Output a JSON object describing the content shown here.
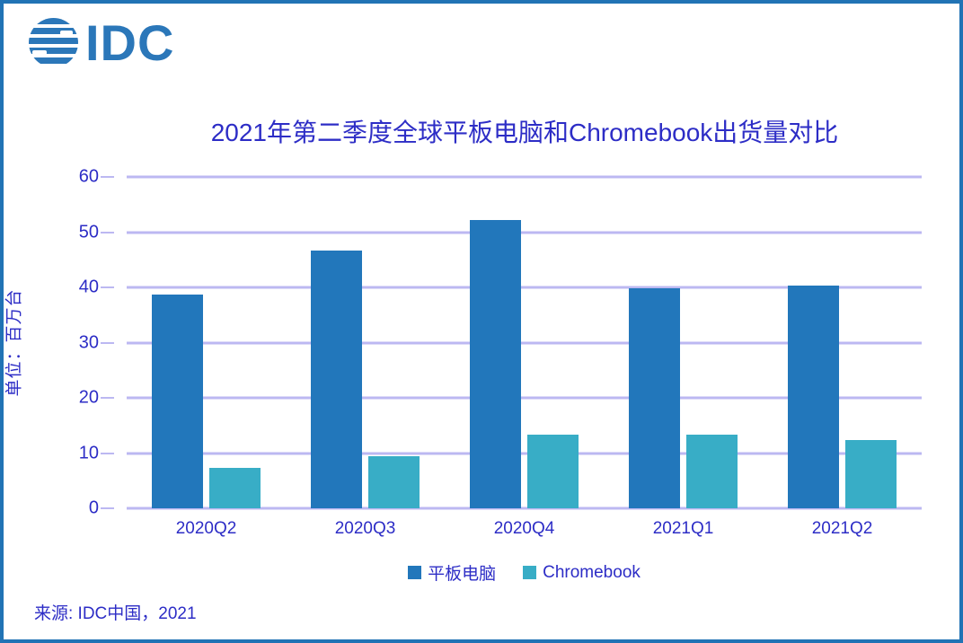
{
  "logo": {
    "text": "IDC"
  },
  "header": {
    "title": "2021年第二季度全球平板电脑和Chromebook出货量对比"
  },
  "source": "来源: IDC中国，2021",
  "colors": {
    "tablet": "#2277BB",
    "chromebook": "#38ADC6",
    "gridline": "#BCB8F2",
    "text": "#2D2DC6",
    "logo": "#2B77B9",
    "border": "#2173B5"
  },
  "chart_data": {
    "type": "bar",
    "title": "2021年第二季度全球平板电脑和Chromebook出货量对比",
    "categories": [
      "2020Q2",
      "2020Q3",
      "2020Q4",
      "2021Q1",
      "2021Q2"
    ],
    "series": [
      {
        "name": "平板电脑",
        "color_key": "tablet",
        "values": [
          38.7,
          46.7,
          52.2,
          39.9,
          40.3
        ]
      },
      {
        "name": "Chromebook",
        "color_key": "chromebook",
        "values": [
          7.3,
          9.4,
          13.4,
          13.4,
          12.4
        ]
      }
    ],
    "xlabel": "",
    "ylabel": "单位：百万台",
    "ylim": [
      0,
      60
    ],
    "yticks": [
      0,
      10,
      20,
      30,
      40,
      50,
      60
    ],
    "grid": true,
    "legend_position": "bottom",
    "unit": "百万台"
  }
}
